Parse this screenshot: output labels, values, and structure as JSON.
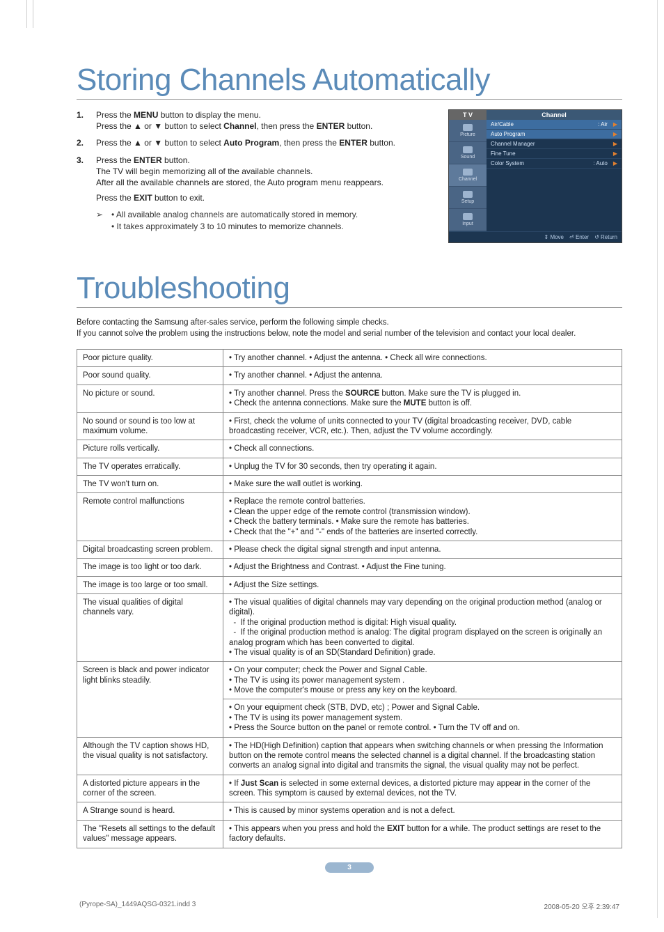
{
  "heading1": "Storing Channels Automatically",
  "steps": [
    {
      "num": "1.",
      "html": "Press the <b>MENU</b> button to display the menu.<br>Press the ▲ or ▼ button to select <b>Channel</b>, then press the <b>ENTER</b> button."
    },
    {
      "num": "2.",
      "html": "Press the ▲ or ▼ button to select <b>Auto Program</b>, then press the <b>ENTER</b> button."
    },
    {
      "num": "3.",
      "html": "Press the <b>ENTER</b> button.<br>The TV will begin memorizing all of the available channels.<br>After all the available channels are stored, the Auto program menu reappears.<br><div style='margin-top:6px;'>Press the <b>EXIT</b> button to exit.</div>"
    }
  ],
  "notes": [
    "• All available analog channels are automatically stored in memory.",
    "• It takes approximately 3 to 10 minutes to memorize channels."
  ],
  "tvmenu": {
    "hl": "T V",
    "hr": "Channel",
    "nav": [
      "Picture",
      "Sound",
      "Channel",
      "Setup",
      "Input"
    ],
    "rows": [
      {
        "label": "Air/Cable",
        "val": ": Air",
        "hi": true
      },
      {
        "label": "Auto Program",
        "val": "",
        "hi": true
      },
      {
        "label": "Channel Manager",
        "val": "",
        "hi": false
      },
      {
        "label": "Fine Tune",
        "val": "",
        "hi": false
      },
      {
        "label": "Color System",
        "val": ": Auto",
        "hi": false
      }
    ],
    "footer": [
      "⇕ Move",
      "⏎ Enter",
      "↺ Return"
    ]
  },
  "heading2": "Troubleshooting",
  "intro": "Before contacting the Samsung after-sales service, perform the following simple checks.<br>If you cannot solve the problem using the instructions below, note the model and serial number of the television and contact your local dealer.",
  "rows": [
    {
      "p": "Poor picture quality.",
      "s": "• Try another channel. • Adjust the antenna. • Check all wire connections."
    },
    {
      "p": "Poor sound quality.",
      "s": "• Try another channel. • Adjust the antenna."
    },
    {
      "p": "No picture or sound.",
      "s": "• Try another channel. Press the <b>SOURCE</b> button. Make sure the TV is plugged in.<br>• Check the antenna connections. Make sure the <b>MUTE</b> button is off."
    },
    {
      "p": "No sound or sound is too low at maximum volume.",
      "s": "• First, check the volume of units connected to your TV (digital broadcasting receiver, DVD, cable broadcasting receiver, VCR, etc.). Then, adjust the TV volume accordingly."
    },
    {
      "p": "Picture rolls vertically.",
      "s": "• Check all connections."
    },
    {
      "p": "The TV operates erratically.",
      "s": "• Unplug the TV for 30 seconds, then try operating it again."
    },
    {
      "p": "The TV won't turn on.",
      "s": "• Make sure the wall outlet is working."
    },
    {
      "p": "Remote control malfunctions",
      "s": "• Replace the remote control batteries.<br>• Clean the upper edge of the remote control (transmission window).<br>• Check the battery terminals. • Make sure the remote has batteries.<br>• Check that the \"+\" and \"-\" ends of the batteries are inserted correctly."
    },
    {
      "p": "Digital broadcasting screen problem.",
      "s": "• Please check the digital signal strength and input antenna."
    },
    {
      "p": "The image is too light or too dark.",
      "s": "• Adjust the Brightness and Contrast. • Adjust the Fine tuning."
    },
    {
      "p": "The image is too large or too small.",
      "s": "• Adjust the Size settings."
    },
    {
      "p": "The visual qualities of digital channels vary.",
      "s": "• The visual qualities of digital channels may vary depending on the original production method (analog or digital).<br>&nbsp;&nbsp;- &nbsp;If the original production method is digital: High visual quality.<br>&nbsp;&nbsp;- &nbsp;If the original production method is analog: The digital program displayed on the screen is originally an analog program which has been converted to digital.<br>• The visual quality is of an SD(Standard Definition) grade."
    },
    {
      "p": "Screen is black and power indicator light blinks steadily.",
      "s": "• On your computer; check the Power and Signal Cable.<br>• The TV is using its power management system .<br>• Move the computer's mouse or press any key on the keyboard.",
      "extra": "• On your equipment check (STB, DVD, etc) ; Power and Signal Cable.<br>• The TV is using its power management system.<br>• Press the Source button on the panel or remote control. • Turn the TV off and on."
    },
    {
      "p": "Although the TV caption shows HD, the visual quality is not satisfactory.",
      "s": "• The HD(High Definition) caption that appears when switching channels or when pressing the Information button on the remote control means the selected channel is a digital channel. If the broadcasting station converts an analog signal into digital and transmits the signal, the visual quality may not be perfect."
    },
    {
      "p": "A distorted picture appears in the corner of the screen.",
      "s": "• If <b>Just Scan</b> is selected in some external devices, a distorted picture may appear in the corner of the screen. This symptom is caused by external devices, not the TV."
    },
    {
      "p": "A Strange sound is heard.",
      "s": "• This is caused by minor systems operation and is not a defect."
    },
    {
      "p": "The \"Resets all settings to the default values\" message appears.",
      "s": "• This appears when you press and hold the <b>EXIT</b> button for a while. The product settings are reset to the factory defaults."
    }
  ],
  "page_num": "3",
  "foot_left": "(Pyrope-SA)_1449AQSG-0321.indd   3",
  "foot_right": "2008-05-20   오후 2:39:47"
}
